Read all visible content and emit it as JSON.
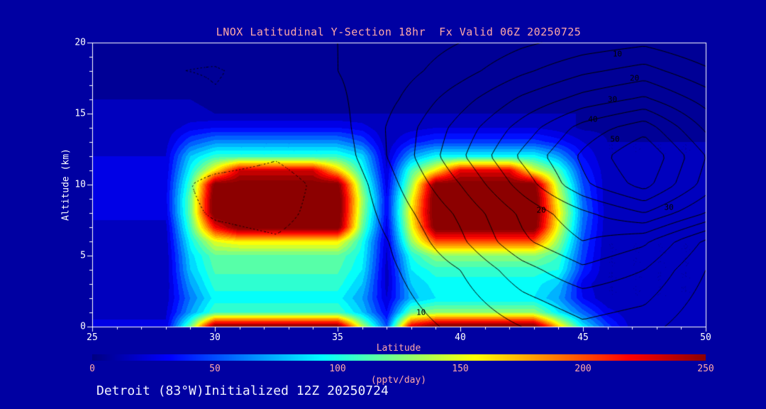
{
  "title": "LNOX Latitudinal Y-Section 18hr  Fx Valid 06Z 20250725",
  "caption": "Detroit (83°W)Initialized 12Z 20250724",
  "colors": {
    "background": "#0000a2",
    "frame": "#ffffff",
    "tick_text": "#ffffff",
    "pink_text": "#ffa8a8",
    "caption_text": "#f2f2ff",
    "contour_line": "#000000"
  },
  "chart_data": {
    "type": "heatmap",
    "title": "LNOX Latitudinal Y-Section 18hr  Fx Valid 06Z 20250725",
    "xlabel": "Latitude",
    "ylabel": "Altitude (km)",
    "xlim": [
      25,
      50
    ],
    "ylim": [
      0,
      20
    ],
    "x_ticks": [
      25,
      30,
      35,
      40,
      45,
      50
    ],
    "y_ticks": [
      0,
      5,
      10,
      15,
      20
    ],
    "x_minor_step": 1,
    "y_minor_step": 1,
    "band_step": 10,
    "colormap": [
      [
        0.0,
        0,
        0,
        130
      ],
      [
        0.125,
        0,
        0,
        255
      ],
      [
        0.375,
        0,
        255,
        255
      ],
      [
        0.625,
        255,
        255,
        0
      ],
      [
        0.875,
        255,
        0,
        0
      ],
      [
        1.0,
        140,
        0,
        0
      ]
    ],
    "field": {
      "units": "pptv/day",
      "lat_start": 25,
      "lat_step": 1,
      "alt_start": 0,
      "alt_step": 1,
      "values": [
        [
          22,
          22,
          22,
          22,
          120,
          260,
          260,
          260,
          260,
          260,
          260,
          140,
          50,
          230,
          265,
          265,
          265,
          265,
          265,
          170,
          90,
          45,
          15,
          15,
          15,
          15
        ],
        [
          18,
          18,
          18,
          18,
          70,
          110,
          110,
          110,
          110,
          110,
          110,
          80,
          30,
          120,
          130,
          130,
          130,
          130,
          130,
          90,
          55,
          25,
          12,
          12,
          12,
          12
        ],
        [
          14,
          14,
          14,
          14,
          60,
          95,
          95,
          95,
          95,
          95,
          95,
          70,
          20,
          75,
          90,
          90,
          90,
          90,
          90,
          70,
          30,
          10,
          10,
          10,
          10,
          10
        ],
        [
          12,
          12,
          12,
          12,
          70,
          105,
          105,
          105,
          105,
          105,
          105,
          80,
          15,
          80,
          95,
          95,
          95,
          95,
          95,
          80,
          25,
          10,
          10,
          10,
          10,
          10
        ],
        [
          12,
          12,
          12,
          12,
          80,
          112,
          112,
          112,
          112,
          112,
          112,
          90,
          15,
          90,
          105,
          105,
          105,
          105,
          105,
          100,
          40,
          10,
          10,
          10,
          10,
          10
        ],
        [
          12,
          12,
          12,
          12,
          85,
          118,
          118,
          118,
          118,
          118,
          118,
          95,
          18,
          100,
          130,
          130,
          130,
          130,
          130,
          110,
          45,
          10,
          10,
          10,
          10,
          10
        ],
        [
          14,
          14,
          14,
          14,
          95,
          150,
          160,
          160,
          160,
          160,
          160,
          100,
          20,
          130,
          200,
          200,
          200,
          200,
          200,
          130,
          50,
          10,
          10,
          10,
          10,
          10
        ],
        [
          16,
          16,
          16,
          16,
          110,
          220,
          262,
          262,
          262,
          262,
          262,
          120,
          25,
          150,
          262,
          262,
          262,
          262,
          262,
          150,
          55,
          12,
          12,
          12,
          12,
          12
        ],
        [
          24,
          24,
          24,
          24,
          120,
          268,
          268,
          268,
          268,
          268,
          268,
          130,
          30,
          160,
          268,
          268,
          268,
          268,
          268,
          160,
          60,
          12,
          12,
          12,
          12,
          12
        ],
        [
          26,
          26,
          26,
          26,
          120,
          268,
          268,
          268,
          268,
          268,
          268,
          135,
          30,
          150,
          268,
          268,
          268,
          268,
          268,
          150,
          55,
          12,
          12,
          12,
          12,
          12
        ],
        [
          25,
          25,
          25,
          25,
          110,
          258,
          258,
          258,
          258,
          258,
          258,
          120,
          25,
          130,
          258,
          258,
          258,
          258,
          258,
          135,
          50,
          12,
          12,
          12,
          12,
          12
        ],
        [
          22,
          22,
          22,
          22,
          95,
          160,
          230,
          230,
          230,
          230,
          170,
          100,
          20,
          110,
          160,
          225,
          225,
          225,
          150,
          110,
          40,
          12,
          12,
          12,
          12,
          12
        ],
        [
          20,
          20,
          20,
          20,
          80,
          105,
          105,
          105,
          105,
          105,
          105,
          85,
          15,
          70,
          95,
          95,
          95,
          95,
          95,
          70,
          30,
          10,
          10,
          10,
          10,
          10
        ],
        [
          16,
          16,
          16,
          16,
          50,
          65,
          65,
          65,
          65,
          65,
          65,
          50,
          12,
          35,
          45,
          45,
          45,
          45,
          45,
          35,
          20,
          10,
          10,
          10,
          10,
          10
        ],
        [
          13,
          13,
          13,
          13,
          25,
          30,
          30,
          30,
          30,
          30,
          30,
          25,
          10,
          15,
          20,
          20,
          20,
          20,
          20,
          15,
          8,
          8,
          8,
          8,
          8,
          8
        ],
        [
          12,
          12,
          12,
          12,
          12,
          10,
          10,
          10,
          10,
          10,
          10,
          10,
          10,
          10,
          10,
          10,
          10,
          10,
          10,
          10,
          10,
          10,
          10,
          10,
          10,
          10
        ],
        [
          10,
          10,
          10,
          10,
          10,
          8,
          8,
          8,
          8,
          8,
          8,
          8,
          8,
          8,
          8,
          8,
          8,
          8,
          8,
          8,
          8,
          8,
          8,
          8,
          8,
          8
        ],
        [
          8,
          8,
          8,
          8,
          8,
          8,
          8,
          8,
          8,
          8,
          8,
          8,
          8,
          8,
          8,
          8,
          8,
          8,
          8,
          8,
          8,
          8,
          8,
          8,
          8,
          8
        ],
        [
          6,
          6,
          6,
          6,
          6,
          6,
          6,
          6,
          6,
          6,
          6,
          6,
          6,
          6,
          6,
          6,
          6,
          6,
          6,
          6,
          6,
          6,
          6,
          6,
          6,
          6
        ],
        [
          6,
          6,
          6,
          6,
          6,
          6,
          6,
          6,
          6,
          6,
          6,
          6,
          6,
          6,
          6,
          6,
          6,
          6,
          6,
          6,
          6,
          6,
          6,
          6,
          6,
          6
        ],
        [
          5,
          5,
          5,
          5,
          5,
          5,
          5,
          5,
          5,
          5,
          5,
          5,
          5,
          5,
          5,
          5,
          5,
          5,
          5,
          5,
          5,
          5,
          5,
          5,
          5,
          5
        ]
      ]
    },
    "overlay": {
      "lat_start": 25,
      "lat_step": 2.5,
      "alt_start": 0,
      "alt_step": 2,
      "levels_solid": [
        5,
        10,
        15,
        20,
        25,
        30,
        35,
        40,
        45,
        50,
        55
      ],
      "levels_dotted": [
        -2.5
      ],
      "values": [
        [
          0,
          0,
          0,
          0,
          0,
          3,
          6,
          10,
          14,
          12,
          6
        ],
        [
          0,
          0,
          0,
          0,
          0,
          4,
          8,
          14,
          18,
          16,
          8
        ],
        [
          0,
          0,
          0,
          0,
          1,
          5,
          10,
          18,
          24,
          20,
          10
        ],
        [
          0,
          0,
          -1,
          -2,
          0,
          6,
          14,
          24,
          30,
          26,
          14
        ],
        [
          0,
          0,
          -3,
          -4,
          0,
          8,
          16,
          26,
          34,
          40,
          30
        ],
        [
          0,
          0,
          -4,
          -5,
          0,
          10,
          20,
          32,
          44,
          52,
          38
        ],
        [
          2,
          1,
          0,
          -2,
          2,
          12,
          24,
          36,
          46,
          55,
          40
        ],
        [
          3,
          2,
          1,
          0,
          3,
          12,
          22,
          32,
          42,
          48,
          34
        ],
        [
          4,
          3,
          -2,
          0,
          4,
          10,
          18,
          26,
          32,
          36,
          28
        ],
        [
          2,
          -2,
          -3,
          0,
          5,
          8,
          13,
          19,
          24,
          27,
          21
        ],
        [
          1,
          -1,
          0,
          3,
          5,
          7,
          10,
          14,
          17,
          19,
          15
        ]
      ],
      "labels": [
        {
          "text": "10",
          "lat": 46.4,
          "alt": 19.2
        },
        {
          "text": "20",
          "lat": 47.1,
          "alt": 17.5
        },
        {
          "text": "30",
          "lat": 46.2,
          "alt": 16.0
        },
        {
          "text": "40",
          "lat": 45.4,
          "alt": 14.6
        },
        {
          "text": "50",
          "lat": 46.3,
          "alt": 13.2
        },
        {
          "text": "20",
          "lat": 43.3,
          "alt": 8.2
        },
        {
          "text": "30",
          "lat": 48.5,
          "alt": 8.4
        },
        {
          "text": "10",
          "lat": 38.4,
          "alt": 1.0
        }
      ]
    },
    "colorbar": {
      "min": 0,
      "max": 250,
      "ticks": [
        0,
        50,
        100,
        150,
        200,
        250
      ],
      "label": "(pptv/day)"
    }
  }
}
